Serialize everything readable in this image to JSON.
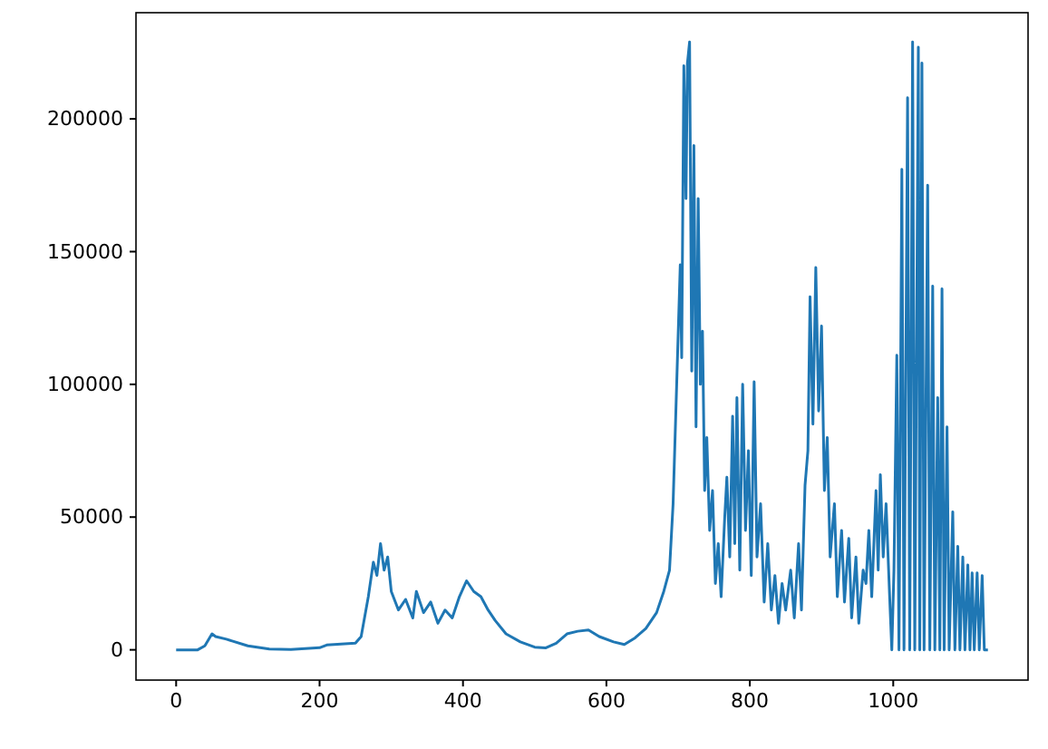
{
  "chart_data": {
    "type": "line",
    "x": [
      0,
      30,
      40,
      50,
      55,
      70,
      100,
      130,
      160,
      200,
      210,
      250,
      258,
      268,
      275,
      280,
      285,
      290,
      295,
      300,
      310,
      320,
      330,
      335,
      345,
      355,
      365,
      375,
      385,
      395,
      405,
      415,
      425,
      435,
      445,
      460,
      480,
      500,
      515,
      530,
      545,
      560,
      575,
      590,
      610,
      625,
      640,
      655,
      670,
      680,
      688,
      693,
      698,
      703,
      705,
      708,
      711,
      713,
      716,
      719,
      722,
      725,
      728,
      731,
      734,
      737,
      740,
      744,
      748,
      752,
      756,
      760,
      765,
      768,
      772,
      776,
      779,
      782,
      786,
      790,
      794,
      798,
      802,
      806,
      810,
      815,
      820,
      825,
      830,
      835,
      840,
      845,
      850,
      857,
      862,
      868,
      872,
      877,
      881,
      884,
      888,
      892,
      896,
      900,
      904,
      908,
      912,
      918,
      922,
      928,
      932,
      938,
      942,
      948,
      952,
      958,
      962,
      966,
      970,
      976,
      979,
      982,
      986,
      990,
      995,
      998,
      1001,
      1005,
      1008,
      1012,
      1015,
      1020,
      1023,
      1027,
      1030,
      1035,
      1037,
      1040,
      1043,
      1048,
      1051,
      1055,
      1058,
      1062,
      1065,
      1068,
      1071,
      1075,
      1078,
      1083,
      1086,
      1090,
      1093,
      1097,
      1100,
      1104,
      1107,
      1110,
      1113,
      1117,
      1120,
      1124,
      1127,
      1132
    ],
    "series": [
      {
        "color": "#1f77b4",
        "values": [
          0,
          0,
          1500,
          6000,
          5000,
          4000,
          1500,
          300,
          100,
          800,
          1800,
          2500,
          5000,
          20000,
          33000,
          28000,
          40000,
          30000,
          35000,
          22000,
          15000,
          19000,
          12000,
          22000,
          14000,
          18000,
          10000,
          15000,
          12000,
          20000,
          26000,
          22000,
          20000,
          15000,
          11000,
          6000,
          3000,
          1000,
          700,
          2500,
          6000,
          7000,
          7500,
          5000,
          3000,
          2000,
          4500,
          8000,
          14000,
          22000,
          30000,
          55000,
          100000,
          145000,
          110000,
          220000,
          170000,
          221000,
          229000,
          105000,
          190000,
          84000,
          170000,
          100000,
          120000,
          60000,
          80000,
          45000,
          60000,
          25000,
          40000,
          20000,
          50000,
          65000,
          35000,
          88000,
          40000,
          95000,
          30000,
          100000,
          45000,
          75000,
          28000,
          101000,
          35000,
          55000,
          18000,
          40000,
          15000,
          28000,
          10000,
          25000,
          15000,
          30000,
          12000,
          40000,
          15000,
          62000,
          75000,
          133000,
          85000,
          144000,
          90000,
          122000,
          60000,
          80000,
          35000,
          55000,
          20000,
          45000,
          18000,
          42000,
          12000,
          35000,
          10000,
          30000,
          25000,
          45000,
          20000,
          60000,
          30000,
          66000,
          35000,
          55000,
          20000,
          0,
          30000,
          111000,
          0,
          181000,
          0,
          208000,
          0,
          229000,
          0,
          227000,
          0,
          221000,
          0,
          175000,
          0,
          137000,
          0,
          95000,
          0,
          136000,
          0,
          84000,
          0,
          52000,
          0,
          39000,
          0,
          35000,
          0,
          32000,
          0,
          29000,
          0,
          29000,
          0,
          28000,
          0,
          0
        ]
      }
    ],
    "xlim": [
      -56,
      1188
    ],
    "ylim": [
      -11400,
      240000
    ],
    "xticks": [
      0,
      200,
      400,
      600,
      800,
      1000
    ],
    "yticks": [
      0,
      50000,
      100000,
      150000,
      200000
    ],
    "grid": false
  }
}
